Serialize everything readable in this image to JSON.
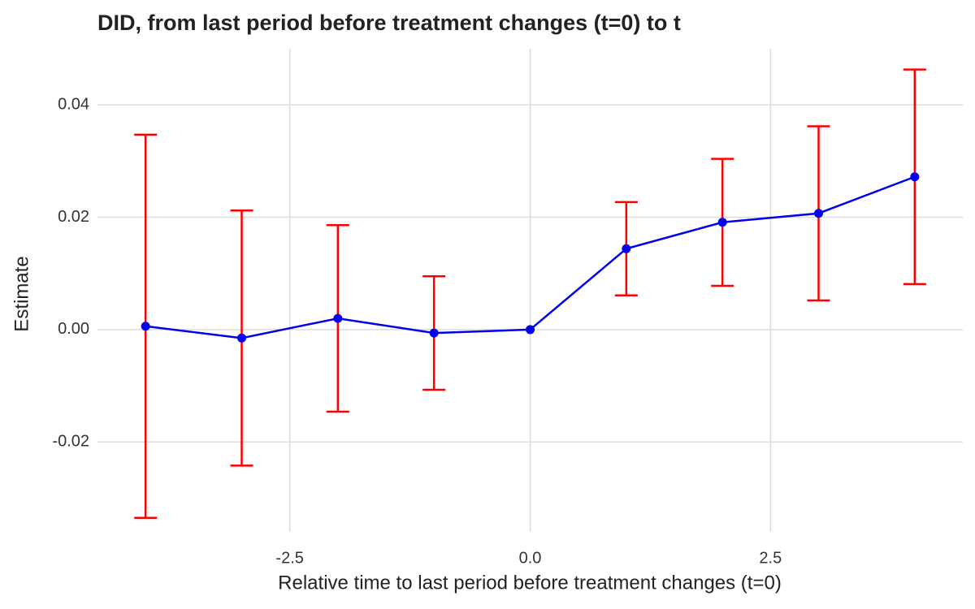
{
  "chart_data": {
    "type": "errorbar-line",
    "title": "DID, from last period before treatment changes (t=0) to t",
    "x_label": "Relative time to last period before treatment changes (t=0)",
    "y_label": "Estimate",
    "x": [
      -4,
      -3,
      -2,
      -1,
      0,
      1,
      2,
      3,
      4
    ],
    "series": [
      {
        "color": "#0000ee",
        "error_color": "#ff0000",
        "values": [
          0.0006,
          -0.0015,
          0.002,
          -0.0006,
          0,
          0.0144,
          0.0191,
          0.0207,
          0.0272
        ],
        "error": [
          0.0341,
          0.0227,
          0.0166,
          0.0101,
          null,
          0.0083,
          0.0113,
          0.0155,
          0.0191
        ]
      }
    ],
    "xlim": [
      -4.5,
      4.5
    ],
    "ylim": [
      -0.036,
      0.05
    ],
    "xticks": [
      -2.5,
      {
        "value": 0,
        "label": "0.0"
      },
      2.5
    ],
    "yticks": [
      -0.02,
      {
        "value": 0,
        "label": "0.00"
      },
      0.02,
      0.04
    ],
    "grid": true
  }
}
